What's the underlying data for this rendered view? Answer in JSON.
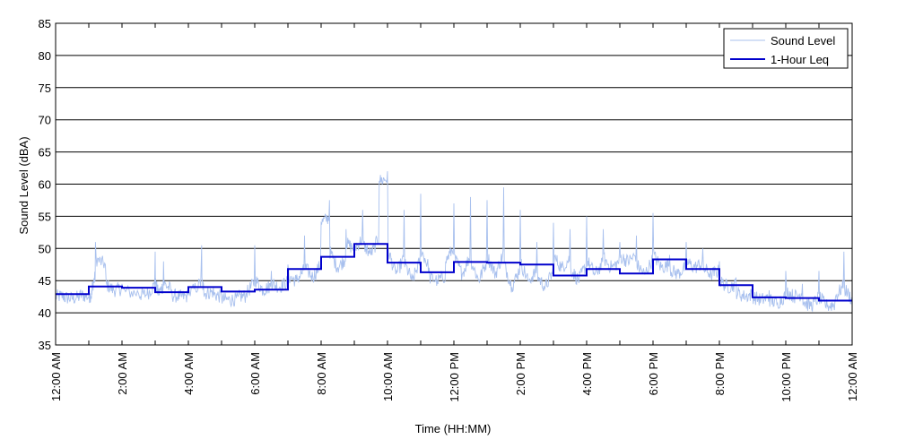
{
  "chart_data": {
    "type": "line",
    "xlabel": "Time (HH:MM)",
    "ylabel": "Sound Level (dBA)",
    "xlim": [
      0,
      24
    ],
    "ylim": [
      35,
      85
    ],
    "y_ticks": [
      35,
      40,
      45,
      50,
      55,
      60,
      65,
      70,
      75,
      80,
      85
    ],
    "x_ticks": [
      0,
      2,
      4,
      6,
      8,
      10,
      12,
      14,
      16,
      18,
      20,
      22,
      24
    ],
    "x_tick_labels": [
      "12:00 AM",
      "2:00 AM",
      "4:00 AM",
      "6:00 AM",
      "8:00 AM",
      "10:00 AM",
      "12:00 PM",
      "2:00 PM",
      "4:00 PM",
      "6:00 PM",
      "8:00 PM",
      "10:00 PM",
      "12:00 AM"
    ],
    "grid": "horizontal",
    "legend_position": "top-right",
    "colors": {
      "sound_level": "#a8c0ee",
      "leq": "#0000cc"
    },
    "series": [
      {
        "name": "Sound Level",
        "style": "thin-line",
        "note_points": "approximate envelope of the continuous measured trace",
        "x": [
          0,
          0.25,
          0.5,
          0.75,
          1,
          1.1,
          1.2,
          1.5,
          1.75,
          2,
          2.5,
          2.75,
          3,
          3.1,
          3.25,
          3.5,
          3.75,
          4,
          4.4,
          4.5,
          4.75,
          5,
          5.25,
          5.5,
          5.75,
          6,
          6.25,
          6.5,
          6.75,
          7,
          7.25,
          7.5,
          7.75,
          8,
          8.25,
          8.5,
          8.75,
          9,
          9.25,
          9.5,
          9.75,
          10,
          10.25,
          10.5,
          10.75,
          11,
          11.25,
          11.5,
          11.75,
          12,
          12.25,
          12.5,
          12.75,
          13,
          13.25,
          13.5,
          13.75,
          14,
          14.25,
          14.5,
          14.75,
          15,
          15.25,
          15.5,
          15.75,
          16,
          16.25,
          16.5,
          16.75,
          17,
          17.25,
          17.5,
          17.75,
          18,
          18.25,
          18.5,
          18.75,
          19,
          19.25,
          19.5,
          19.75,
          20,
          20.25,
          20.5,
          20.75,
          21,
          21.25,
          21.5,
          21.75,
          22,
          22.25,
          22.5,
          22.75,
          23,
          23.25,
          23.5,
          23.75,
          24
        ],
        "values": [
          42.5,
          43,
          42.2,
          43.5,
          42.5,
          44,
          51,
          47.5,
          43.5,
          44.5,
          43,
          42.8,
          49.5,
          43,
          48,
          43.5,
          42.5,
          42.8,
          50.5,
          43,
          44,
          42.5,
          42,
          42.5,
          43,
          50.5,
          43.5,
          46.5,
          44,
          47.5,
          45,
          52,
          45.5,
          54,
          57.5,
          47,
          53,
          50,
          56,
          49,
          60.5,
          62,
          46,
          56,
          45,
          58.5,
          47,
          45,
          48,
          57,
          46,
          58,
          45,
          57.5,
          46,
          59.5,
          44,
          56,
          45,
          51,
          44,
          54,
          47,
          53,
          45,
          55,
          46,
          53,
          47,
          51,
          48,
          52,
          46,
          55.5,
          47,
          49,
          46,
          51,
          47,
          50,
          46,
          48,
          44,
          45.5,
          42.5,
          44,
          42,
          43.5,
          41.5,
          46.5,
          42.5,
          44.5,
          41,
          46.5,
          41,
          42.5,
          49.5,
          42
        ]
      },
      {
        "name": "1-Hour Leq",
        "style": "step",
        "hours": [
          0,
          1,
          2,
          3,
          4,
          5,
          6,
          7,
          8,
          9,
          10,
          11,
          12,
          13,
          14,
          15,
          16,
          17,
          18,
          19,
          20,
          21,
          22,
          23
        ],
        "values": [
          42.9,
          44.1,
          43.9,
          43.2,
          44.0,
          43.3,
          43.6,
          46.8,
          48.7,
          50.7,
          47.8,
          46.3,
          47.9,
          47.8,
          47.5,
          45.8,
          46.8,
          46.1,
          48.3,
          46.8,
          44.3,
          42.4,
          42.3,
          41.9
        ]
      }
    ]
  }
}
